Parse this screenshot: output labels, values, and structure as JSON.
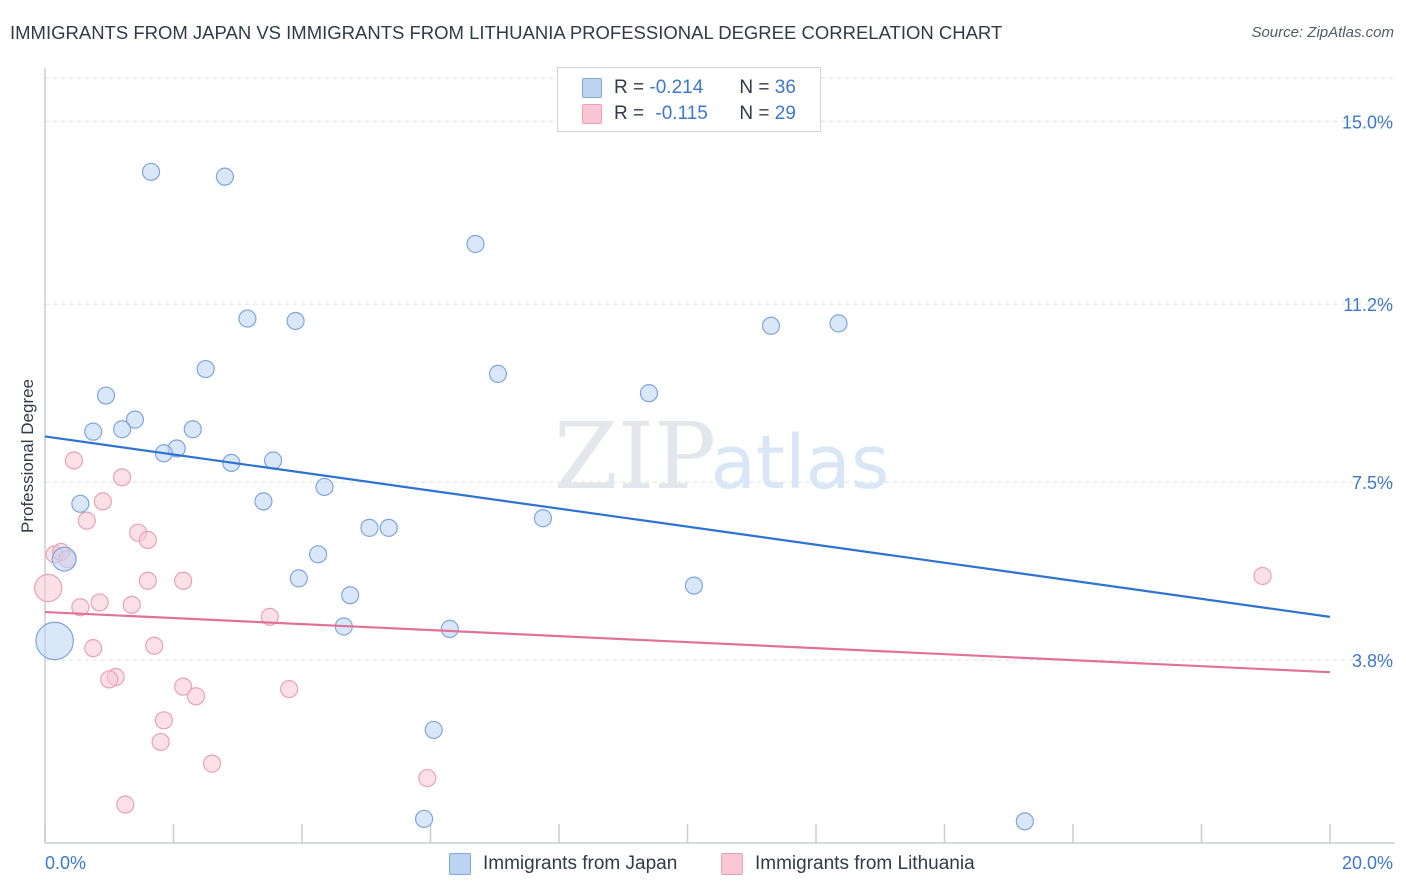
{
  "title": "IMMIGRANTS FROM JAPAN VS IMMIGRANTS FROM LITHUANIA PROFESSIONAL DEGREE CORRELATION CHART",
  "source": "Source: ZipAtlas.com",
  "watermark": {
    "zip": "ZIP",
    "atlas": "atlas"
  },
  "legend": {
    "r_label": "R =",
    "n_label": "N =",
    "rows": [
      {
        "r": "-0.214",
        "n": "36"
      },
      {
        "r": "-0.115",
        "n": "29"
      }
    ]
  },
  "bottom_legend": {
    "japan": "Immigrants from Japan",
    "lithuania": "Immigrants from Lithuania"
  },
  "colors": {
    "japan_fill": "#bcd3f2",
    "japan_stroke": "#7ea6dd",
    "japan_line": "#2f72d1",
    "lith_fill": "#f8c6d5",
    "lith_stroke": "#e9a1b8",
    "lith_line": "#e0729a",
    "tick_text": "#3d78c9",
    "grid": "#dcdfe3"
  },
  "chart_data": {
    "type": "scatter",
    "title": "IMMIGRANTS FROM JAPAN VS IMMIGRANTS FROM LITHUANIA PROFESSIONAL DEGREE CORRELATION CHART",
    "xlabel": "",
    "ylabel": "Professional Degree",
    "xlim": [
      0,
      20
    ],
    "ylim": [
      0,
      15.9
    ],
    "x_tick_labels": [
      "0.0%",
      "20.0%"
    ],
    "y_ticks": [
      {
        "value": 15.0,
        "label": "15.0%"
      },
      {
        "value": 11.2,
        "label": "11.2%"
      },
      {
        "value": 7.5,
        "label": "7.5%"
      },
      {
        "value": 3.8,
        "label": "3.8%"
      }
    ],
    "series": [
      {
        "name": "Immigrants from Japan",
        "r": -0.214,
        "n": 36,
        "trend": {
          "x": [
            0,
            20
          ],
          "y": [
            8.45,
            4.7
          ]
        },
        "points": [
          {
            "x": 1.65,
            "y": 13.95,
            "s": 1
          },
          {
            "x": 2.8,
            "y": 13.85,
            "s": 1
          },
          {
            "x": 6.7,
            "y": 12.45,
            "s": 1
          },
          {
            "x": 3.15,
            "y": 10.9,
            "s": 1
          },
          {
            "x": 3.9,
            "y": 10.85,
            "s": 1
          },
          {
            "x": 11.3,
            "y": 10.75,
            "s": 1
          },
          {
            "x": 12.35,
            "y": 10.8,
            "s": 1
          },
          {
            "x": 2.5,
            "y": 9.85,
            "s": 1
          },
          {
            "x": 7.05,
            "y": 9.75,
            "s": 1
          },
          {
            "x": 9.4,
            "y": 9.35,
            "s": 1
          },
          {
            "x": 0.95,
            "y": 9.3,
            "s": 1
          },
          {
            "x": 1.4,
            "y": 8.8,
            "s": 1
          },
          {
            "x": 0.75,
            "y": 8.55,
            "s": 1
          },
          {
            "x": 1.2,
            "y": 8.6,
            "s": 1
          },
          {
            "x": 2.3,
            "y": 8.6,
            "s": 1
          },
          {
            "x": 2.05,
            "y": 8.2,
            "s": 1
          },
          {
            "x": 1.85,
            "y": 8.1,
            "s": 1
          },
          {
            "x": 2.9,
            "y": 7.9,
            "s": 1
          },
          {
            "x": 3.55,
            "y": 7.95,
            "s": 1
          },
          {
            "x": 4.35,
            "y": 7.4,
            "s": 1
          },
          {
            "x": 0.55,
            "y": 7.05,
            "s": 1
          },
          {
            "x": 3.4,
            "y": 7.1,
            "s": 1
          },
          {
            "x": 7.75,
            "y": 6.75,
            "s": 1
          },
          {
            "x": 5.05,
            "y": 6.55,
            "s": 1
          },
          {
            "x": 5.35,
            "y": 6.55,
            "s": 1
          },
          {
            "x": 4.25,
            "y": 6.0,
            "s": 1
          },
          {
            "x": 0.3,
            "y": 5.9,
            "s": 1.4
          },
          {
            "x": 3.95,
            "y": 5.5,
            "s": 1
          },
          {
            "x": 10.1,
            "y": 5.35,
            "s": 1
          },
          {
            "x": 4.75,
            "y": 5.15,
            "s": 1
          },
          {
            "x": 4.65,
            "y": 4.5,
            "s": 1
          },
          {
            "x": 6.3,
            "y": 4.45,
            "s": 1
          },
          {
            "x": 0.15,
            "y": 4.2,
            "s": 2.2
          },
          {
            "x": 6.05,
            "y": 2.35,
            "s": 1
          },
          {
            "x": 5.9,
            "y": 0.5,
            "s": 1
          },
          {
            "x": 15.25,
            "y": 0.45,
            "s": 1
          }
        ]
      },
      {
        "name": "Immigrants from Lithuania",
        "r": -0.115,
        "n": 29,
        "trend": {
          "x": [
            0,
            20
          ],
          "y": [
            4.8,
            3.55
          ]
        },
        "points": [
          {
            "x": 0.45,
            "y": 7.95,
            "s": 1
          },
          {
            "x": 1.2,
            "y": 7.6,
            "s": 1
          },
          {
            "x": 0.9,
            "y": 7.1,
            "s": 1
          },
          {
            "x": 0.65,
            "y": 6.7,
            "s": 1
          },
          {
            "x": 1.45,
            "y": 6.45,
            "s": 1
          },
          {
            "x": 1.6,
            "y": 6.3,
            "s": 1
          },
          {
            "x": 0.15,
            "y": 6.0,
            "s": 1
          },
          {
            "x": 0.25,
            "y": 6.05,
            "s": 1
          },
          {
            "x": 0.35,
            "y": 5.9,
            "s": 1
          },
          {
            "x": 1.6,
            "y": 5.45,
            "s": 1
          },
          {
            "x": 2.15,
            "y": 5.45,
            "s": 1
          },
          {
            "x": 0.05,
            "y": 5.3,
            "s": 1.6
          },
          {
            "x": 0.85,
            "y": 5.0,
            "s": 1
          },
          {
            "x": 0.55,
            "y": 4.9,
            "s": 1
          },
          {
            "x": 1.35,
            "y": 4.95,
            "s": 1
          },
          {
            "x": 3.5,
            "y": 4.7,
            "s": 1
          },
          {
            "x": 1.7,
            "y": 4.1,
            "s": 1
          },
          {
            "x": 0.75,
            "y": 4.05,
            "s": 1
          },
          {
            "x": 1.1,
            "y": 3.45,
            "s": 1
          },
          {
            "x": 1.0,
            "y": 3.4,
            "s": 1
          },
          {
            "x": 2.15,
            "y": 3.25,
            "s": 1
          },
          {
            "x": 3.8,
            "y": 3.2,
            "s": 1
          },
          {
            "x": 2.35,
            "y": 3.05,
            "s": 1
          },
          {
            "x": 1.85,
            "y": 2.55,
            "s": 1
          },
          {
            "x": 1.8,
            "y": 2.1,
            "s": 1
          },
          {
            "x": 2.6,
            "y": 1.65,
            "s": 1
          },
          {
            "x": 5.95,
            "y": 1.35,
            "s": 1
          },
          {
            "x": 1.25,
            "y": 0.8,
            "s": 1
          },
          {
            "x": 18.95,
            "y": 5.55,
            "s": 1
          }
        ]
      }
    ]
  }
}
